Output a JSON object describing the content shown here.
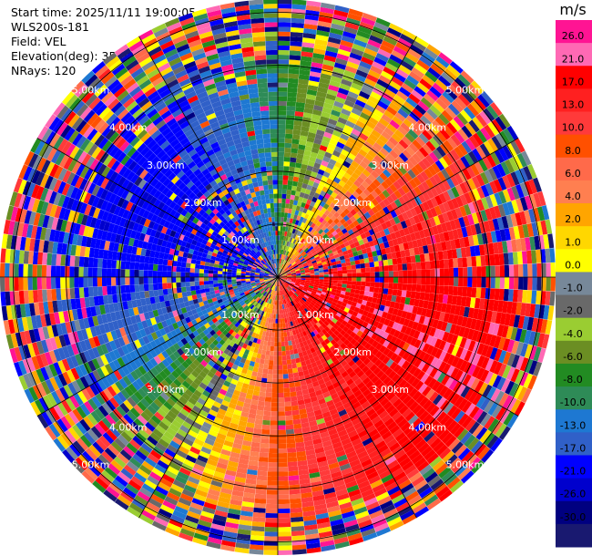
{
  "header": {
    "start_time": "Start time: 2025/11/11 19:00:05",
    "instrument": "WLS200s-181",
    "field": "Field: VEL",
    "elevation": "Elevation(deg): 35.00",
    "nrays": "NRays: 120"
  },
  "chart_data": {
    "type": "heatmap",
    "subtype": "polar-ppi",
    "nrays": 120,
    "range_rings_km": [
      1,
      2,
      3,
      4,
      5
    ],
    "range_ring_labels": [
      "1.00km",
      "2.00km",
      "3.00km",
      "4.00km",
      "5.00km"
    ],
    "grid": true,
    "colorbar": {
      "unit": "m/s",
      "ticks": [
        "26.0",
        "21.0",
        "17.0",
        "13.0",
        "10.0",
        "8.0",
        "6.0",
        "4.0",
        "2.0",
        "1.0",
        "0.0",
        "-1.0",
        "-2.0",
        "-4.0",
        "-6.0",
        "-8.0",
        "-10.0",
        "-13.0",
        "-17.0",
        "-21.0",
        "-26.0",
        "-30.0"
      ],
      "colors": [
        "#ff1493",
        "#ff69b4",
        "#ff0000",
        "#ff2020",
        "#ff3a3a",
        "#ff5000",
        "#ff6a4a",
        "#ff7f50",
        "#ffa500",
        "#ffd700",
        "#ffff00",
        "#778899",
        "#696969",
        "#9acd32",
        "#6b8e23",
        "#228b22",
        "#2e8b57",
        "#1e78d2",
        "#3060c8",
        "#0000ff",
        "#0000cd",
        "#000080",
        "#191970"
      ]
    }
  }
}
